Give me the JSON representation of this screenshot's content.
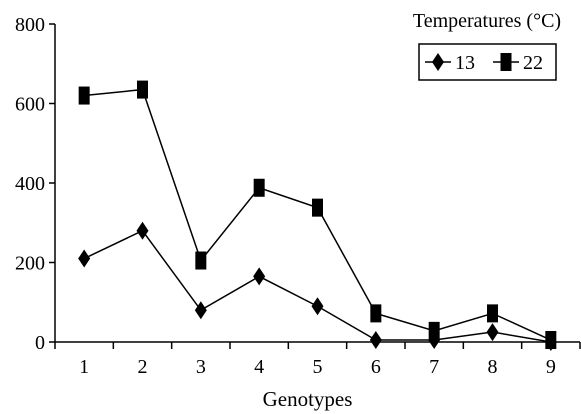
{
  "chart_data": {
    "type": "line",
    "xlabel": "Genotypes",
    "ylabel": "",
    "categories": [
      "1",
      "2",
      "3",
      "4",
      "5",
      "6",
      "7",
      "8",
      "9"
    ],
    "ylim": [
      0,
      800
    ],
    "yticks": [
      0,
      200,
      400,
      600,
      800
    ],
    "grid": false,
    "legend": {
      "title": "Temperatures (°C)",
      "placement": "top-right"
    },
    "series": [
      {
        "name": "13",
        "marker": "diamond",
        "values": [
          210,
          280,
          80,
          165,
          90,
          5,
          5,
          25,
          0
        ]
      },
      {
        "name": "22",
        "marker": "square",
        "values": [
          620,
          635,
          205,
          388,
          338,
          72,
          28,
          72,
          5
        ]
      }
    ],
    "line_color": "#000000"
  }
}
